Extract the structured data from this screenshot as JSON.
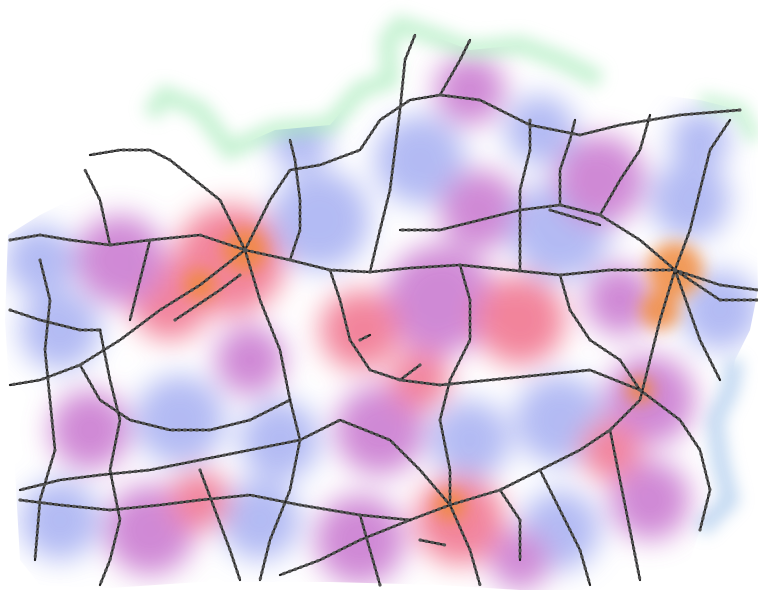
{
  "map": {
    "colors": {
      "background": "#ffffff",
      "heat_low": "#9aa4f0",
      "heat_mid": "#c062c8",
      "heat_high": "#ee5b7a",
      "heat_hub": "#f08a3c",
      "edge_fringe": "#9fe9b4",
      "rail": "#1d1d1d"
    },
    "legend": null,
    "labels": []
  }
}
